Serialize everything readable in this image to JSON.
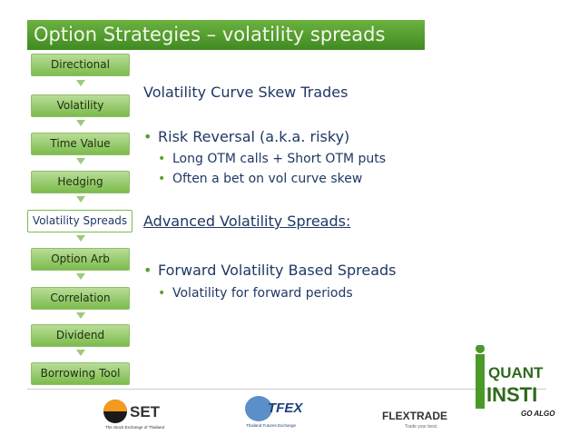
{
  "title": "Option Strategies – volatility spreads",
  "nav": [
    "Directional",
    "Volatility",
    "Time Value",
    "Hedging",
    "Volatility Spreads",
    "Option Arb",
    "Correlation",
    "Dividend",
    "Borrowing Tool"
  ],
  "content": {
    "heading1": "Volatility Curve Skew Trades",
    "bullet1": {
      "text": "Risk Reversal (a.k.a. risky)",
      "sub": [
        "Long OTM calls + Short OTM puts",
        "Often a bet on vol curve skew"
      ]
    },
    "heading2": "Advanced Volatility Spreads:",
    "bullet2": {
      "text": "Forward Volatility Based Spreads",
      "sub": [
        "Volatility for forward periods"
      ]
    }
  },
  "logos": {
    "set": {
      "name": "SET",
      "tagline": "The Stock Exchange of Thailand"
    },
    "tfex": {
      "name": "TFEX",
      "tagline": "Thailand Futures Exchange"
    },
    "flextrade": {
      "name": "FLEXTRADE",
      "tagline": "Trade your best."
    },
    "quantinsti": {
      "line1": "QUANT",
      "line2": "INSTI",
      "tagline": "GO ALGO"
    }
  }
}
